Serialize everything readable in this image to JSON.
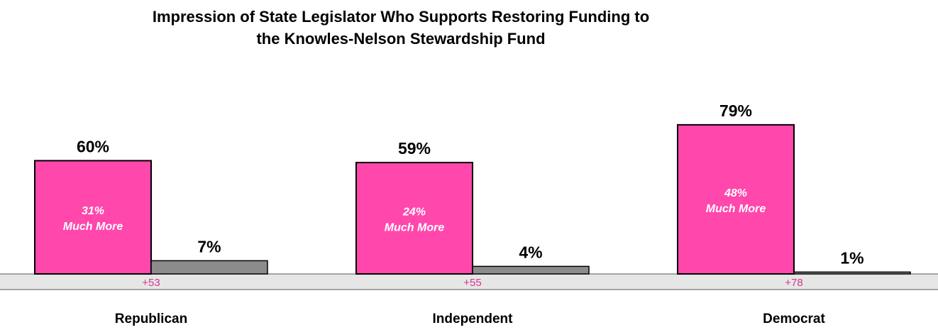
{
  "chart_data": {
    "type": "bar",
    "title_lines": [
      "Impression of State Legislator Who Supports Restoring Funding to",
      "the Knowles-Nelson Stewardship Fund"
    ],
    "categories": [
      "Republican",
      "Independent",
      "Democrat"
    ],
    "series": [
      {
        "values": [
          60,
          59,
          79
        ],
        "value_labels": [
          "60%",
          "59%",
          "79%"
        ],
        "inner_labels": [
          "31%",
          "24%",
          "48%"
        ],
        "inner_suffix": "Much More",
        "color": "#ff47ac"
      },
      {
        "values": [
          7,
          4,
          1
        ],
        "value_labels": [
          "7%",
          "4%",
          "1%"
        ],
        "color": "#8c8c8c"
      }
    ],
    "net_labels": [
      "+53",
      "+55",
      "+78"
    ],
    "net_color": "#d6388f",
    "band_color": "#e6e6e6",
    "ylim": [
      0,
      80
    ],
    "grid": false,
    "legend": "none"
  }
}
